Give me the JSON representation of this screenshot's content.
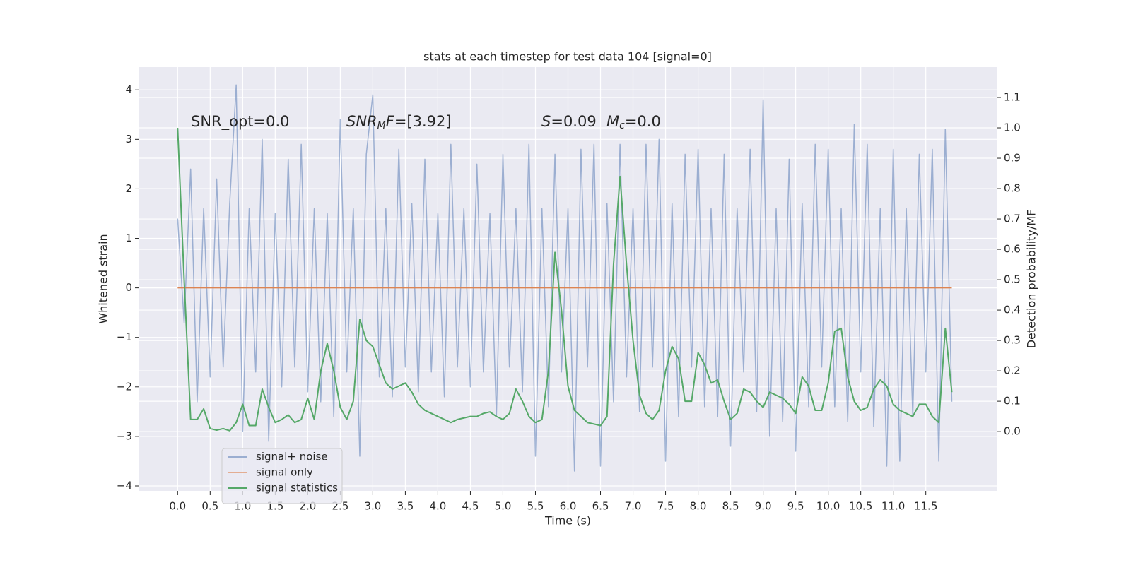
{
  "chart_data": {
    "type": "line",
    "title": "stats at each timestep for test data 104 [signal=0]",
    "xlabel": "Time (s)",
    "ylabel": "Whitened strain",
    "y2label": "Detection probability/MF",
    "annotations": [
      {
        "parts": [
          {
            "text": "SNR_opt=0.0",
            "style": "normal"
          }
        ]
      },
      {
        "parts": [
          {
            "text": "SNR",
            "style": "italic"
          },
          {
            "text": "M",
            "style": "italic-sub"
          },
          {
            "text": "F",
            "style": "italic"
          },
          {
            "text": "=[3.92]",
            "style": "normal"
          }
        ]
      },
      {
        "parts": [
          {
            "text": "S",
            "style": "italic"
          },
          {
            "text": "=0.09",
            "style": "normal"
          }
        ]
      },
      {
        "parts": [
          {
            "text": "M",
            "style": "italic"
          },
          {
            "text": "c",
            "style": "italic-sub"
          },
          {
            "text": "=0.0",
            "style": "normal"
          }
        ]
      }
    ],
    "x": [
      0,
      0.1,
      0.2,
      0.3,
      0.4,
      0.5,
      0.6,
      0.7,
      0.8,
      0.9,
      1,
      1.1,
      1.2,
      1.3,
      1.4,
      1.5,
      1.6,
      1.7,
      1.8,
      1.9,
      2,
      2.1,
      2.2,
      2.3,
      2.4,
      2.5,
      2.6,
      2.7,
      2.8,
      2.9,
      3,
      3.1,
      3.2,
      3.3,
      3.4,
      3.5,
      3.6,
      3.7,
      3.8,
      3.9,
      4,
      4.1,
      4.2,
      4.3,
      4.4,
      4.5,
      4.6,
      4.7,
      4.8,
      4.9,
      5,
      5.1,
      5.2,
      5.3,
      5.4,
      5.5,
      5.6,
      5.7,
      5.8,
      5.9,
      6,
      6.1,
      6.2,
      6.3,
      6.4,
      6.5,
      6.6,
      6.7,
      6.8,
      6.9,
      7,
      7.1,
      7.2,
      7.3,
      7.4,
      7.5,
      7.6,
      7.7,
      7.8,
      7.9,
      8,
      8.1,
      8.2,
      8.3,
      8.4,
      8.5,
      8.6,
      8.7,
      8.8,
      8.9,
      9,
      9.1,
      9.2,
      9.3,
      9.4,
      9.5,
      9.6,
      9.7,
      9.8,
      9.9,
      10,
      10.1,
      10.2,
      10.3,
      10.4,
      10.5,
      10.6,
      10.7,
      10.8,
      10.9,
      11,
      11.1,
      11.2,
      11.3,
      11.4,
      11.5,
      11.6,
      11.7,
      11.8,
      11.9
    ],
    "series": [
      {
        "name": "signal+ noise",
        "color": "#4c72b0",
        "alpha": 0.5,
        "values": [
          1.4,
          -0.7,
          2.4,
          -2.3,
          1.6,
          -1.8,
          2.2,
          -1.6,
          1.7,
          4.1,
          -2.9,
          1.6,
          -1.7,
          3.0,
          -3.1,
          1.5,
          -2.0,
          2.6,
          -1.6,
          2.9,
          -2.1,
          1.6,
          -2.3,
          1.5,
          -2.6,
          3.4,
          -1.7,
          1.6,
          -3.4,
          2.7,
          3.9,
          -1.8,
          1.6,
          -2.2,
          2.8,
          -1.6,
          1.7,
          -2.1,
          2.6,
          -1.7,
          1.5,
          -2.2,
          2.9,
          -1.6,
          1.6,
          -2.0,
          2.5,
          -1.7,
          1.5,
          -2.6,
          2.7,
          -1.6,
          1.6,
          -2.1,
          2.9,
          -3.4,
          1.6,
          -2.4,
          2.7,
          -1.7,
          1.6,
          -3.7,
          2.8,
          -1.6,
          2.9,
          -3.6,
          1.7,
          -2.3,
          2.9,
          -1.8,
          1.6,
          -2.5,
          2.9,
          -1.6,
          3.0,
          -3.5,
          1.7,
          -2.6,
          2.7,
          -1.6,
          2.8,
          -2.4,
          1.6,
          -2.6,
          2.7,
          -3.2,
          1.6,
          -1.7,
          2.8,
          -2.5,
          3.8,
          -3.0,
          1.6,
          -2.7,
          2.6,
          -3.3,
          1.7,
          -2.4,
          2.9,
          -1.6,
          2.8,
          -2.4,
          1.6,
          -2.7,
          3.3,
          -1.7,
          2.9,
          -2.8,
          1.6,
          -3.6,
          2.8,
          -3.5,
          1.6,
          -2.6,
          2.7,
          -1.7,
          2.8,
          -3.5,
          3.2,
          -2.3
        ]
      },
      {
        "name": "signal only",
        "color": "#dd8452",
        "values": [
          0,
          0,
          0,
          0,
          0,
          0,
          0,
          0,
          0,
          0,
          0,
          0,
          0,
          0,
          0,
          0,
          0,
          0,
          0,
          0,
          0,
          0,
          0,
          0,
          0,
          0,
          0,
          0,
          0,
          0,
          0,
          0,
          0,
          0,
          0,
          0,
          0,
          0,
          0,
          0,
          0,
          0,
          0,
          0,
          0,
          0,
          0,
          0,
          0,
          0,
          0,
          0,
          0,
          0,
          0,
          0,
          0,
          0,
          0,
          0,
          0,
          0,
          0,
          0,
          0,
          0,
          0,
          0,
          0,
          0,
          0,
          0,
          0,
          0,
          0,
          0,
          0,
          0,
          0,
          0,
          0,
          0,
          0,
          0,
          0,
          0,
          0,
          0,
          0,
          0,
          0,
          0,
          0,
          0,
          0,
          0,
          0,
          0,
          0,
          0,
          0,
          0,
          0,
          0,
          0,
          0,
          0,
          0,
          0,
          0,
          0,
          0,
          0,
          0,
          0,
          0,
          0,
          0,
          0,
          0
        ]
      },
      {
        "name": "signal statistics",
        "color": "#55a868",
        "axis": "y2",
        "values": [
          1.0,
          0.5,
          0.04,
          0.04,
          0.075,
          0.01,
          0.005,
          0.01,
          0.003,
          0.03,
          0.09,
          0.02,
          0.02,
          0.14,
          0.08,
          0.03,
          0.04,
          0.055,
          0.03,
          0.04,
          0.11,
          0.04,
          0.2,
          0.29,
          0.2,
          0.08,
          0.04,
          0.1,
          0.37,
          0.3,
          0.28,
          0.22,
          0.16,
          0.14,
          0.15,
          0.16,
          0.13,
          0.09,
          0.07,
          0.06,
          0.05,
          0.04,
          0.03,
          0.04,
          0.045,
          0.05,
          0.05,
          0.06,
          0.065,
          0.05,
          0.04,
          0.06,
          0.14,
          0.1,
          0.05,
          0.03,
          0.04,
          0.2,
          0.59,
          0.4,
          0.15,
          0.07,
          0.05,
          0.03,
          0.025,
          0.02,
          0.05,
          0.55,
          0.84,
          0.55,
          0.3,
          0.12,
          0.06,
          0.04,
          0.07,
          0.2,
          0.28,
          0.24,
          0.1,
          0.1,
          0.26,
          0.22,
          0.16,
          0.17,
          0.1,
          0.04,
          0.06,
          0.14,
          0.13,
          0.1,
          0.08,
          0.13,
          0.12,
          0.11,
          0.09,
          0.06,
          0.18,
          0.15,
          0.07,
          0.07,
          0.16,
          0.33,
          0.34,
          0.18,
          0.1,
          0.07,
          0.08,
          0.14,
          0.17,
          0.15,
          0.09,
          0.07,
          0.06,
          0.05,
          0.09,
          0.09,
          0.05,
          0.03,
          0.34,
          0.13
        ]
      }
    ],
    "xlim": [
      -0.59,
      12.59
    ],
    "xticks": [
      {
        "value": 0,
        "label": "0.0"
      },
      {
        "value": 0.5,
        "label": "0.5"
      },
      {
        "value": 1,
        "label": "1.0"
      },
      {
        "value": 1.5,
        "label": "1.5"
      },
      {
        "value": 2,
        "label": "2.0"
      },
      {
        "value": 2.5,
        "label": "2.5"
      },
      {
        "value": 3,
        "label": "3.0"
      },
      {
        "value": 3.5,
        "label": "3.5"
      },
      {
        "value": 4,
        "label": "4.0"
      },
      {
        "value": 4.5,
        "label": "4.5"
      },
      {
        "value": 5,
        "label": "5.0"
      },
      {
        "value": 5.5,
        "label": "5.5"
      },
      {
        "value": 6,
        "label": "6.0"
      },
      {
        "value": 6.5,
        "label": "6.5"
      },
      {
        "value": 7,
        "label": "7.0"
      },
      {
        "value": 7.5,
        "label": "7.5"
      },
      {
        "value": 8,
        "label": "8.0"
      },
      {
        "value": 8.5,
        "label": "8.5"
      },
      {
        "value": 9,
        "label": "9.0"
      },
      {
        "value": 9.5,
        "label": "9.5"
      },
      {
        "value": 10,
        "label": "10.0"
      },
      {
        "value": 10.5,
        "label": "10.5"
      },
      {
        "value": 11,
        "label": "11.0"
      },
      {
        "value": 11.5,
        "label": "11.5"
      }
    ],
    "ylim": [
      -4.1,
      4.46
    ],
    "yticks": [
      {
        "value": -4,
        "label": "−4"
      },
      {
        "value": -3,
        "label": "−3"
      },
      {
        "value": -2,
        "label": "−2"
      },
      {
        "value": -1,
        "label": "−1"
      },
      0,
      1,
      2,
      3,
      4
    ],
    "y2lim": [
      -0.195,
      1.2
    ],
    "y2ticks": [
      {
        "value": 0,
        "label": "0.0"
      },
      {
        "value": 0.1,
        "label": "0.1"
      },
      {
        "value": 0.2,
        "label": "0.2"
      },
      {
        "value": 0.3,
        "label": "0.3"
      },
      {
        "value": 0.4,
        "label": "0.4"
      },
      {
        "value": 0.5,
        "label": "0.5"
      },
      {
        "value": 0.6,
        "label": "0.6"
      },
      {
        "value": 0.7,
        "label": "0.7"
      },
      {
        "value": 0.8,
        "label": "0.8"
      },
      {
        "value": 0.9,
        "label": "0.9"
      },
      {
        "value": 1,
        "label": "1.0"
      },
      {
        "value": 1.1,
        "label": "1.1"
      }
    ],
    "grid": true,
    "legend": "lower left",
    "background": "#eaeaf2"
  }
}
